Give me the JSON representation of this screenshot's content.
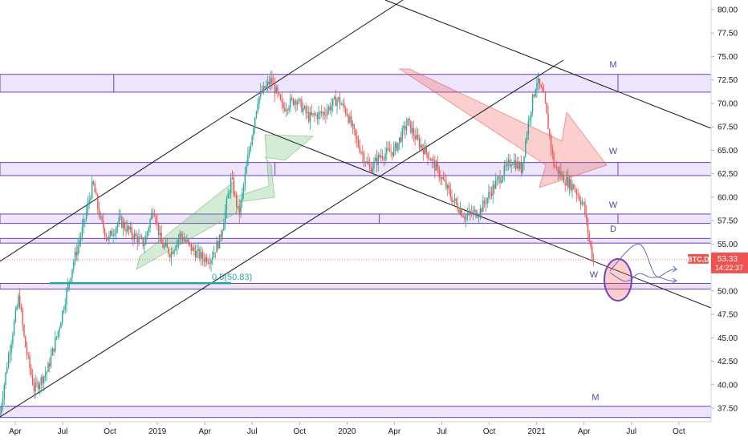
{
  "chart_data": {
    "type": "candlestick",
    "symbol": "BTC.D",
    "last_price": "53.33",
    "countdown": "14:22:37",
    "ylim": [
      36.5,
      81.0
    ],
    "xlim": [
      2018.17,
      2021.92
    ],
    "y_ticks": [
      "37.50",
      "40.00",
      "42.50",
      "45.00",
      "47.50",
      "50.00",
      "52.50",
      "55.00",
      "57.50",
      "60.00",
      "62.50",
      "65.00",
      "67.50",
      "70.00",
      "72.50",
      "75.00",
      "77.50",
      "80.00"
    ],
    "x_ticks": [
      {
        "t": 2018.25,
        "label": "Apr"
      },
      {
        "t": 2018.5,
        "label": "Jul"
      },
      {
        "t": 2018.75,
        "label": "Oct"
      },
      {
        "t": 2019.0,
        "label": "2019"
      },
      {
        "t": 2019.25,
        "label": "Apr"
      },
      {
        "t": 2019.5,
        "label": "Jul"
      },
      {
        "t": 2019.75,
        "label": "Oct"
      },
      {
        "t": 2020.0,
        "label": "2020"
      },
      {
        "t": 2020.25,
        "label": "Apr"
      },
      {
        "t": 2020.5,
        "label": "Jul"
      },
      {
        "t": 2020.75,
        "label": "Oct"
      },
      {
        "t": 2021.0,
        "label": "2021"
      },
      {
        "t": 2021.25,
        "label": "Apr"
      },
      {
        "t": 2021.5,
        "label": "Jul"
      },
      {
        "t": 2021.75,
        "label": "Oct"
      }
    ],
    "price_path": [
      [
        2018.17,
        37.0
      ],
      [
        2018.21,
        42.5
      ],
      [
        2018.27,
        49.5
      ],
      [
        2018.3,
        44.5
      ],
      [
        2018.35,
        39.5
      ],
      [
        2018.42,
        41.5
      ],
      [
        2018.48,
        46.0
      ],
      [
        2018.55,
        52.5
      ],
      [
        2018.61,
        57.0
      ],
      [
        2018.66,
        61.5
      ],
      [
        2018.7,
        57.5
      ],
      [
        2018.74,
        55.5
      ],
      [
        2018.8,
        57.5
      ],
      [
        2018.87,
        56.0
      ],
      [
        2018.93,
        55.0
      ],
      [
        2018.98,
        59.0
      ],
      [
        2019.02,
        55.0
      ],
      [
        2019.07,
        54.0
      ],
      [
        2019.12,
        56.0
      ],
      [
        2019.18,
        54.5
      ],
      [
        2019.24,
        53.5
      ],
      [
        2019.28,
        53.5
      ],
      [
        2019.33,
        55.5
      ],
      [
        2019.39,
        62.0
      ],
      [
        2019.43,
        58.0
      ],
      [
        2019.48,
        64.5
      ],
      [
        2019.53,
        70.5
      ],
      [
        2019.6,
        72.5
      ],
      [
        2019.66,
        69.5
      ],
      [
        2019.73,
        70.5
      ],
      [
        2019.8,
        68.5
      ],
      [
        2019.88,
        69.0
      ],
      [
        2019.95,
        70.5
      ],
      [
        2020.0,
        69.0
      ],
      [
        2020.05,
        66.0
      ],
      [
        2020.12,
        63.0
      ],
      [
        2020.18,
        64.5
      ],
      [
        2020.25,
        65.0
      ],
      [
        2020.32,
        68.0
      ],
      [
        2020.37,
        66.0
      ],
      [
        2020.43,
        64.5
      ],
      [
        2020.5,
        62.0
      ],
      [
        2020.55,
        60.0
      ],
      [
        2020.62,
        58.0
      ],
      [
        2020.7,
        58.5
      ],
      [
        2020.77,
        61.0
      ],
      [
        2020.82,
        62.5
      ],
      [
        2020.87,
        64.0
      ],
      [
        2020.92,
        63.0
      ],
      [
        2020.96,
        68.5
      ],
      [
        2021.0,
        72.5
      ],
      [
        2021.04,
        70.5
      ],
      [
        2021.09,
        63.5
      ],
      [
        2021.14,
        62.0
      ],
      [
        2021.2,
        61.0
      ],
      [
        2021.25,
        59.0
      ],
      [
        2021.28,
        55.0
      ],
      [
        2021.3,
        53.33
      ]
    ],
    "zones": [
      {
        "label": "M",
        "y_low": 71.2,
        "y_high": 73.1
      },
      {
        "label": "W",
        "y_low": 62.3,
        "y_high": 63.7
      },
      {
        "label": "W",
        "y_low": 57.2,
        "y_high": 58.2
      },
      {
        "label": "D",
        "y_low": 55.1,
        "y_high": 55.6
      },
      {
        "label": "W",
        "y_low": 50.2,
        "y_high": 50.8
      },
      {
        "label": "M",
        "y_low": 36.5,
        "y_high": 37.7
      }
    ],
    "fib_level": {
      "label": "0.5(50.83)",
      "value": 50.83
    },
    "colors": {
      "up": "#26a69a",
      "down": "#ef5350",
      "zone_fill": "#ece5fb",
      "zone_stroke": "#6f42c1",
      "trendline": "#131722",
      "badge": "#ef5350"
    }
  }
}
